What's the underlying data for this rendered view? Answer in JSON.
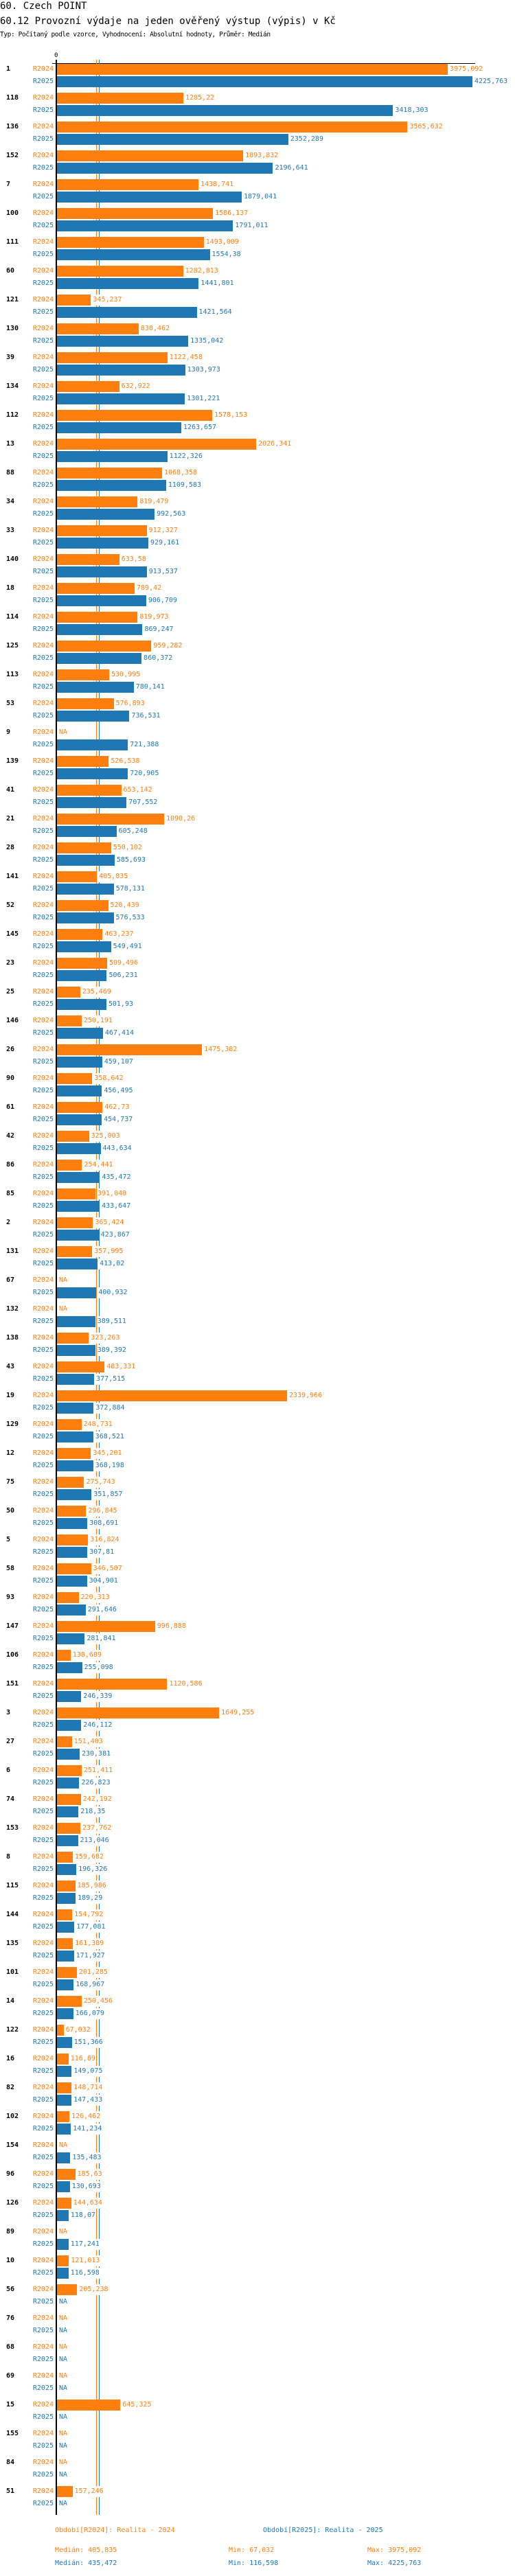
{
  "header": {
    "title": "60. Czech POINT",
    "subtitle": "60.12 Provozní výdaje na jeden ověřený výstup (výpis) v Kč",
    "meta": "Typ: Počítaný podle vzorce, Vyhodnocení: Absolutní hodnoty, Průměr: Medián"
  },
  "chart_data": {
    "type": "bar",
    "orientation": "horizontal",
    "axis_zero_label": "0",
    "xlim": [
      0,
      4225.763
    ],
    "na_label": "NA",
    "colors": {
      "R2024": "#ff7f0e",
      "R2025": "#1f77b4"
    },
    "categories": [
      "1",
      "118",
      "136",
      "152",
      "7",
      "100",
      "111",
      "60",
      "121",
      "130",
      "39",
      "134",
      "112",
      "13",
      "88",
      "34",
      "33",
      "140",
      "18",
      "114",
      "125",
      "113",
      "53",
      "9",
      "139",
      "41",
      "21",
      "28",
      "141",
      "52",
      "145",
      "23",
      "25",
      "146",
      "26",
      "90",
      "61",
      "42",
      "86",
      "85",
      "2",
      "131",
      "67",
      "132",
      "138",
      "43",
      "19",
      "129",
      "12",
      "75",
      "50",
      "5",
      "58",
      "93",
      "147",
      "106",
      "151",
      "3",
      "27",
      "6",
      "74",
      "153",
      "8",
      "115",
      "144",
      "135",
      "101",
      "14",
      "122",
      "16",
      "82",
      "102",
      "154",
      "96",
      "126",
      "89",
      "10",
      "56",
      "76",
      "68",
      "69",
      "15",
      "155",
      "84",
      "51"
    ],
    "series": [
      {
        "name": "R2024",
        "values": [
          3975.092,
          1285.22,
          3565.632,
          1893.832,
          1438.741,
          1586.137,
          1493.009,
          1282.813,
          345.237,
          830.462,
          1122.458,
          632.922,
          1578.153,
          2026.341,
          1068.358,
          819.479,
          912.327,
          633.58,
          789.42,
          819.973,
          959.282,
          530.995,
          576.893,
          null,
          526.538,
          653.142,
          1090.26,
          550.102,
          405.835,
          520.439,
          463.237,
          509.496,
          235.469,
          250.191,
          1475.382,
          358.642,
          462.73,
          325.003,
          254.441,
          391.048,
          365.424,
          357.995,
          null,
          null,
          323.263,
          483.331,
          2339.966,
          248.731,
          345.201,
          275.743,
          296.845,
          316.824,
          346.507,
          220.313,
          996.888,
          138.689,
          1120.586,
          1649.255,
          151.403,
          251.411,
          242.192,
          237.762,
          159.682,
          185.986,
          154.792,
          161.389,
          201.285,
          250.456,
          67.032,
          116.89,
          148.714,
          126.462,
          null,
          185.63,
          144.634,
          null,
          121.013,
          205.238,
          null,
          null,
          null,
          645.325,
          null,
          null,
          157.246
        ]
      },
      {
        "name": "R2025",
        "values": [
          4225.763,
          3418.303,
          2352.289,
          2196.641,
          1879.041,
          1791.011,
          1554.38,
          1441.801,
          1421.564,
          1335.042,
          1303.973,
          1301.221,
          1263.657,
          1122.326,
          1109.583,
          992.563,
          929.161,
          913.537,
          906.709,
          869.247,
          860.372,
          780.141,
          736.531,
          721.388,
          720.905,
          707.552,
          605.248,
          585.693,
          578.131,
          576.533,
          549.491,
          506.231,
          501.93,
          467.414,
          459.107,
          456.495,
          454.737,
          443.634,
          435.472,
          433.647,
          423.867,
          413.02,
          400.932,
          389.511,
          389.392,
          377.515,
          372.884,
          368.521,
          368.198,
          351.857,
          308.691,
          307.81,
          304.901,
          291.646,
          281.841,
          255.098,
          246.339,
          246.112,
          230.381,
          226.823,
          218.35,
          213.046,
          196.326,
          189.29,
          177.081,
          171.927,
          168.967,
          166.079,
          151.366,
          149.075,
          147.433,
          141.234,
          135.483,
          130.693,
          118.07,
          117.241,
          116.598,
          null,
          null,
          null,
          null,
          null,
          null,
          null,
          null
        ]
      }
    ],
    "medians": {
      "R2024": 405.835,
      "R2025": 435.472
    }
  },
  "legend": {
    "r2024": "Období[R2024]: Realita - 2024",
    "r2025": "Období[R2025]: Realita - 2025",
    "r2024_median": "Medián: 405,835",
    "r2024_min": "Min: 67,032",
    "r2024_max": "Max: 3975,092",
    "r2025_median": "Medián: 435,472",
    "r2025_min": "Min: 116,598",
    "r2025_max": "Max: 4225,763"
  }
}
